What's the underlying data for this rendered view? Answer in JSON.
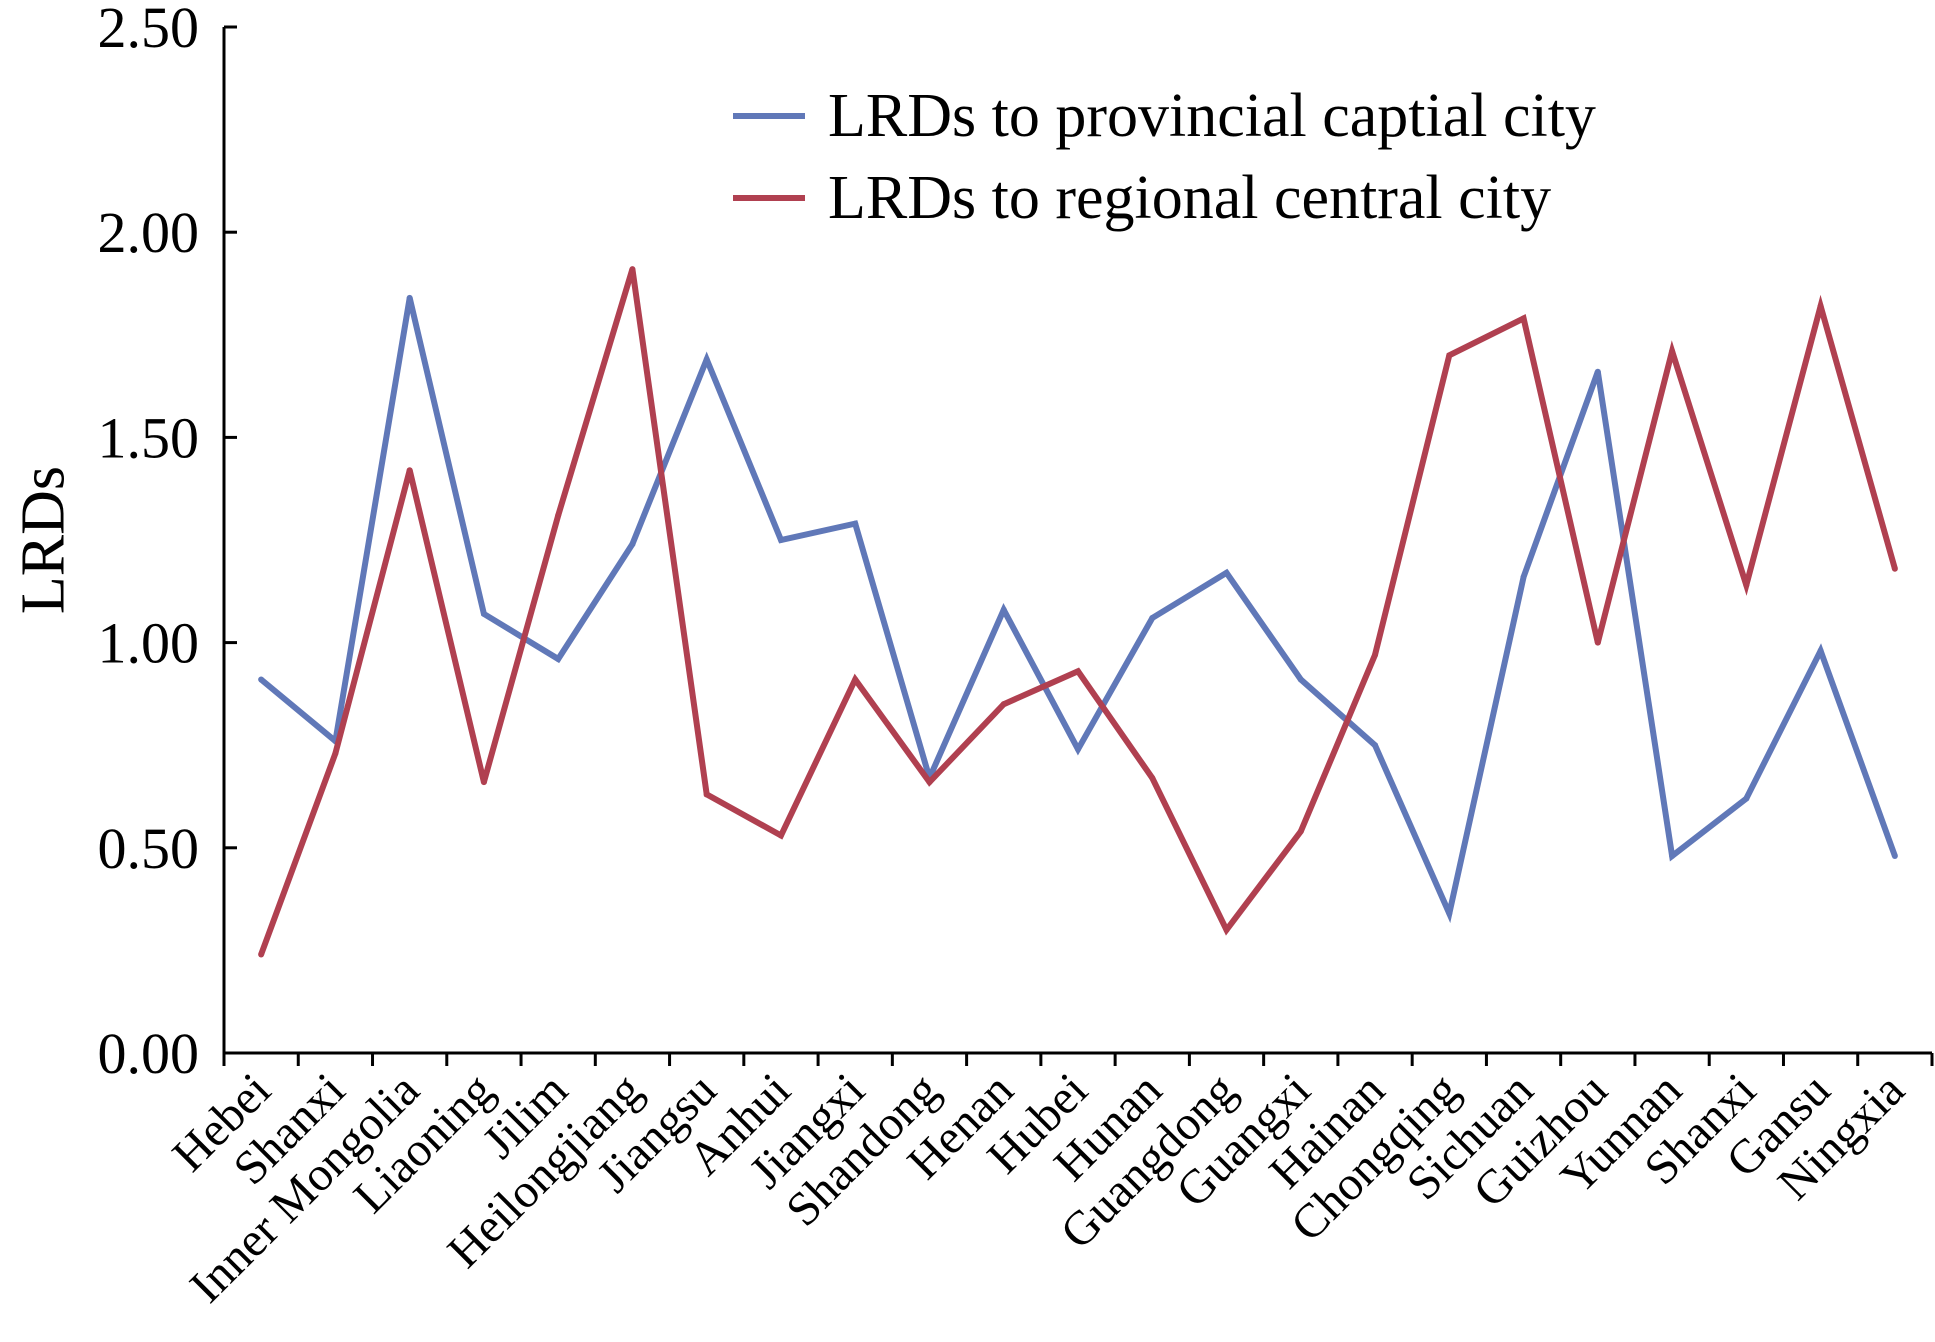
{
  "chart_data": {
    "type": "line",
    "title": "",
    "xlabel": "",
    "ylabel": "LRDs",
    "ylim": [
      0,
      2.5
    ],
    "yticks": [
      "0.00",
      "0.50",
      "1.00",
      "1.50",
      "2.00",
      "2.50"
    ],
    "grid": false,
    "legend_position": "top-right",
    "categories": [
      "Hebei",
      "Shanxi",
      "Inner Mongolia",
      "Liaoning",
      "Jilim",
      "Heilongjiang",
      "Jiangsu",
      "Anhui",
      "Jiangxi",
      "Shandong",
      "Henan",
      "Hubei",
      "Hunan",
      "Guangdong",
      "Guangxi",
      "Hainan",
      "Chongqing",
      "Sichuan",
      "Guizhou",
      "Yunnan",
      "Shanxi",
      "Gansu",
      "Ningxia"
    ],
    "series": [
      {
        "name": "LRDs to provincial captial city",
        "color": "#6078b8",
        "values": [
          0.91,
          0.76,
          1.84,
          1.07,
          0.96,
          1.24,
          1.69,
          1.25,
          1.29,
          0.67,
          1.08,
          0.74,
          1.06,
          1.17,
          0.91,
          0.75,
          0.34,
          1.16,
          1.66,
          0.48,
          0.62,
          0.98,
          0.48
        ]
      },
      {
        "name": "LRDs to regional central city",
        "color": "#b04050",
        "values": [
          0.24,
          0.73,
          1.42,
          0.66,
          1.31,
          1.91,
          0.63,
          0.53,
          0.91,
          0.66,
          0.85,
          0.93,
          0.67,
          0.3,
          0.54,
          0.97,
          1.7,
          1.79,
          1.0,
          1.71,
          1.14,
          1.82,
          1.18
        ]
      }
    ]
  }
}
